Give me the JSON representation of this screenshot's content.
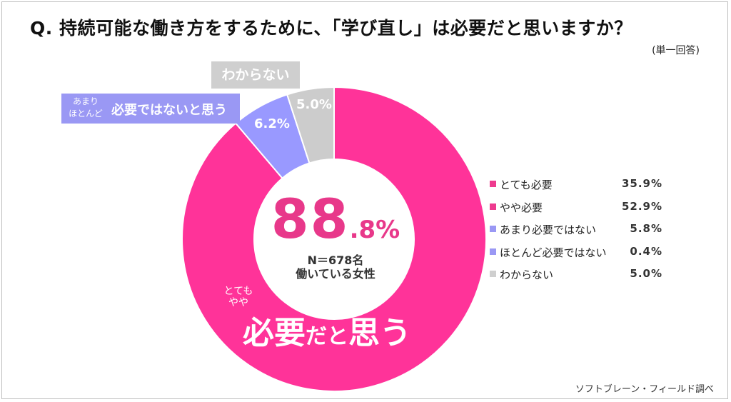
{
  "title": "Q.  持続可能な働き方をするために、「学び直し」は必要だと思いますか？",
  "subnote": "(単一回答)",
  "source": "ソフトブレーン・フィールド調べ",
  "center": {
    "big_int": "88",
    "big_dec": ".8%",
    "n_line1": "N＝678名",
    "n_line2": "働いている女性"
  },
  "callouts": {
    "pink_small_1": "とても",
    "pink_small_2": "やや",
    "pink_big_1": "必要",
    "pink_big_2": "だと",
    "pink_big_3": "思う",
    "purple_small_1": "あまり",
    "purple_small_2": "ほとんど",
    "purple_big": "必要ではないと思う",
    "purple_value": "6.2%",
    "gray_label": "わからない",
    "gray_value": "5.0%"
  },
  "legend": [
    {
      "label": "とても必要",
      "value": "35.9%",
      "color": "#ee3b8f"
    },
    {
      "label": "やや必要",
      "value": "52.9%",
      "color": "#ee3b8f"
    },
    {
      "label": "あまり必要ではない",
      "value": "5.8%",
      "color": "#9a98f4"
    },
    {
      "label": "ほとんど必要ではない",
      "value": "0.4%",
      "color": "#9a98f4"
    },
    {
      "label": "わからない",
      "value": "5.0%",
      "color": "#cfcfcf"
    }
  ],
  "chart_data": {
    "type": "pie",
    "donut": true,
    "slices": [
      {
        "name": "必要だと思う",
        "value": 88.8,
        "color": "#ff3399"
      },
      {
        "name": "必要ではないと思う",
        "value": 6.2,
        "color": "#9999ff"
      },
      {
        "name": "わからない",
        "value": 5.0,
        "color": "#cccccc"
      }
    ]
  }
}
